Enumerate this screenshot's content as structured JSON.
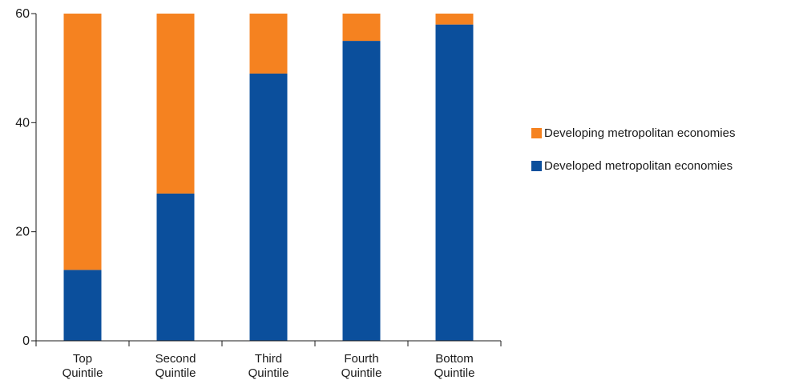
{
  "chart_data": {
    "type": "bar",
    "stacked": true,
    "categories": [
      [
        "Top",
        "Quintile"
      ],
      [
        "Second",
        "Quintile"
      ],
      [
        "Third",
        "Quintile"
      ],
      [
        "Fourth",
        "Quintile"
      ],
      [
        "Bottom",
        "Quintile"
      ]
    ],
    "series": [
      {
        "name": "Developed metropolitan economies",
        "color": "#0b4f9c",
        "values": [
          13,
          27,
          49,
          55,
          58
        ]
      },
      {
        "name": "Developing metropolitan economies",
        "color": "#f58220",
        "values": [
          47,
          33,
          11,
          5,
          2
        ]
      }
    ],
    "title": "",
    "xlabel": "",
    "ylabel": "",
    "ylim": [
      0,
      60
    ],
    "yticks": [
      0,
      20,
      40,
      60
    ],
    "grid": false,
    "legend_position": "right",
    "legend_order": [
      1,
      0
    ]
  }
}
